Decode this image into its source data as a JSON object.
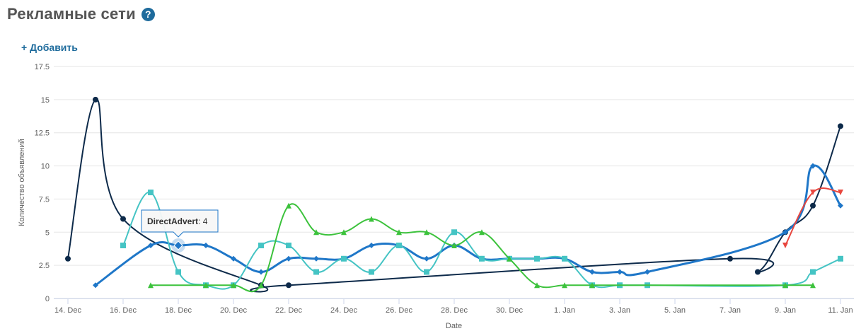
{
  "header": {
    "title": "Рекламные сети",
    "help_icon": "question-circle-icon",
    "help_glyph": "?",
    "add_label": "+ Добавить"
  },
  "colors": {
    "title": "#555555",
    "link": "#1e6b9c",
    "grid": "#e6e6e6",
    "axis": "#ccd6eb"
  },
  "chart_data": {
    "type": "line",
    "xlabel": "Date",
    "ylabel": "Количество объявлений",
    "ylim": [
      0,
      17.5
    ],
    "yticks": [
      "0",
      "2.5",
      "5",
      "7.5",
      "10",
      "12.5",
      "15",
      "17.5"
    ],
    "xticks": [
      "14. Dec",
      "16. Dec",
      "18. Dec",
      "20. Dec",
      "22. Dec",
      "24. Dec",
      "26. Dec",
      "28. Dec",
      "30. Dec",
      "1. Jan",
      "3. Jan",
      "5. Jan",
      "7. Jan",
      "9. Jan",
      "11. Jan"
    ],
    "grid": "horizontal",
    "legend": "none",
    "series": [
      {
        "name": "",
        "color": "#0d2a4a",
        "marker": "circle",
        "width": 2,
        "points": [
          [
            "14. Dec",
            3
          ],
          [
            "15. Dec",
            15
          ],
          [
            "16. Dec",
            6
          ],
          [
            "21. Dec",
            1
          ],
          [
            "22. Dec",
            1
          ],
          [
            "7. Jan",
            3
          ],
          [
            "8. Jan",
            2
          ],
          [
            "9. Jan",
            5
          ],
          [
            "10. Jan",
            7
          ],
          [
            "11. Jan",
            13
          ]
        ]
      },
      {
        "name": "DirectAdvert",
        "color": "#1f77c8",
        "marker": "diamond",
        "width": 3,
        "points": [
          [
            "15. Dec",
            1
          ],
          [
            "17. Dec",
            4
          ],
          [
            "18. Dec",
            4
          ],
          [
            "19. Dec",
            4
          ],
          [
            "20. Dec",
            3
          ],
          [
            "21. Dec",
            2
          ],
          [
            "22. Dec",
            3
          ],
          [
            "23. Dec",
            3
          ],
          [
            "24. Dec",
            3
          ],
          [
            "25. Dec",
            4
          ],
          [
            "26. Dec",
            4
          ],
          [
            "27. Dec",
            3
          ],
          [
            "28. Dec",
            4
          ],
          [
            "29. Dec",
            3
          ],
          [
            "30. Dec",
            3
          ],
          [
            "31. Dec",
            3
          ],
          [
            "1. Jan",
            3
          ],
          [
            "2. Jan",
            2
          ],
          [
            "3. Jan",
            2
          ],
          [
            "4. Jan",
            2
          ],
          [
            "9. Jan",
            5
          ],
          [
            "10. Jan",
            10
          ],
          [
            "11. Jan",
            7
          ]
        ]
      },
      {
        "name": "",
        "color": "#45c4c4",
        "marker": "square",
        "width": 2,
        "points": [
          [
            "16. Dec",
            4
          ],
          [
            "17. Dec",
            8
          ],
          [
            "18. Dec",
            2
          ],
          [
            "19. Dec",
            1
          ],
          [
            "20. Dec",
            1
          ],
          [
            "21. Dec",
            4
          ],
          [
            "22. Dec",
            4
          ],
          [
            "23. Dec",
            2
          ],
          [
            "24. Dec",
            3
          ],
          [
            "25. Dec",
            2
          ],
          [
            "26. Dec",
            4
          ],
          [
            "27. Dec",
            2
          ],
          [
            "28. Dec",
            5
          ],
          [
            "29. Dec",
            3
          ],
          [
            "30. Dec",
            3
          ],
          [
            "31. Dec",
            3
          ],
          [
            "1. Jan",
            3
          ],
          [
            "2. Jan",
            1
          ],
          [
            "3. Jan",
            1
          ],
          [
            "4. Jan",
            1
          ],
          [
            "9. Jan",
            1
          ],
          [
            "10. Jan",
            2
          ],
          [
            "11. Jan",
            3
          ]
        ]
      },
      {
        "name": "",
        "color": "#3cc23c",
        "marker": "triangle",
        "width": 2,
        "points": [
          [
            "17. Dec",
            1
          ],
          [
            "19. Dec",
            1
          ],
          [
            "20. Dec",
            1
          ],
          [
            "21. Dec",
            1
          ],
          [
            "22. Dec",
            7
          ],
          [
            "23. Dec",
            5
          ],
          [
            "24. Dec",
            5
          ],
          [
            "25. Dec",
            6
          ],
          [
            "26. Dec",
            5
          ],
          [
            "27. Dec",
            5
          ],
          [
            "28. Dec",
            4
          ],
          [
            "29. Dec",
            5
          ],
          [
            "30. Dec",
            3
          ],
          [
            "31. Dec",
            1
          ],
          [
            "1. Jan",
            1
          ],
          [
            "2. Jan",
            1
          ],
          [
            "9. Jan",
            1
          ],
          [
            "10. Jan",
            1
          ]
        ]
      },
      {
        "name": "",
        "color": "#e8463e",
        "marker": "triangle-down",
        "width": 2,
        "points": [
          [
            "9. Jan",
            4
          ],
          [
            "10. Jan",
            8
          ],
          [
            "11. Jan",
            8
          ]
        ]
      }
    ],
    "tooltip": {
      "series": "DirectAdvert",
      "x": "18. Dec",
      "label": "DirectAdvert",
      "separator": ": ",
      "value": "4"
    }
  }
}
